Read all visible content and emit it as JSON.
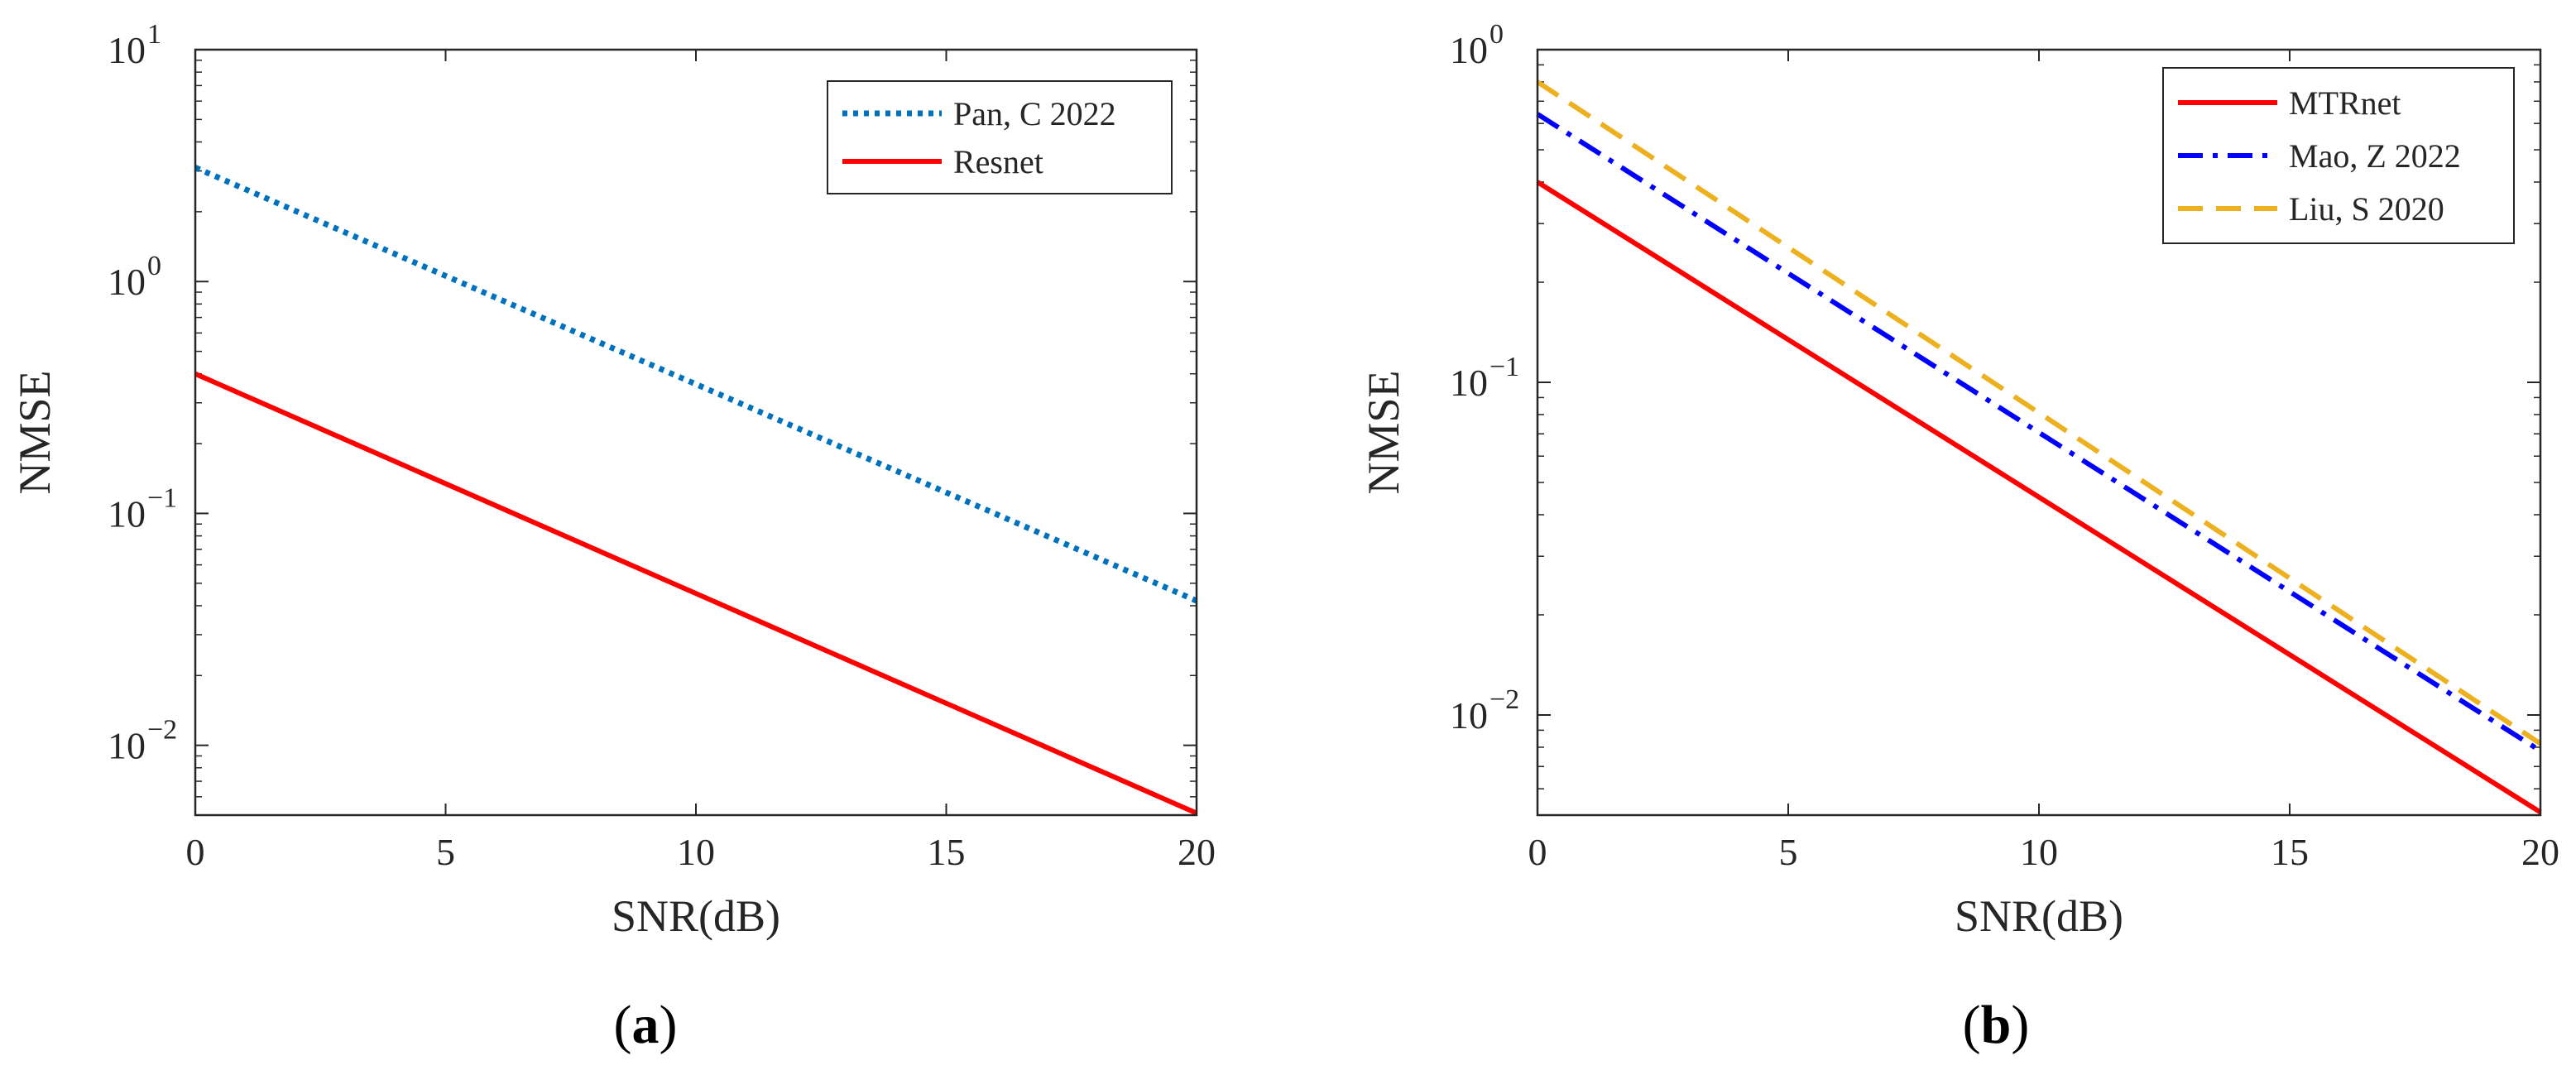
{
  "chart_data": [
    {
      "type": "line",
      "panel_label": "a",
      "xlabel": "SNR(dB)",
      "ylabel": "NMSE",
      "yscale": "log",
      "xlim": [
        0,
        20
      ],
      "ylim": [
        0.005,
        10
      ],
      "x_ticks": [
        0,
        5,
        10,
        15,
        20
      ],
      "y_ticks": [
        0.01,
        0.1,
        1,
        10
      ],
      "y_tick_labels": [
        {
          "base": "10",
          "exp": "−2"
        },
        {
          "base": "10",
          "exp": "−1"
        },
        {
          "base": "10",
          "exp": "0"
        },
        {
          "base": "10",
          "exp": "1"
        }
      ],
      "legend_position": "top-right",
      "series": [
        {
          "name": "Pan, C 2022",
          "color": "#0072BD",
          "style": "dotted",
          "x": [
            0,
            20
          ],
          "y": [
            3.1,
            0.042
          ]
        },
        {
          "name": "Resnet",
          "color": "#FF0000",
          "style": "solid",
          "x": [
            0,
            20
          ],
          "y": [
            0.4,
            0.0051
          ]
        }
      ]
    },
    {
      "type": "line",
      "panel_label": "b",
      "xlabel": "SNR(dB)",
      "ylabel": "NMSE",
      "yscale": "log",
      "xlim": [
        0,
        20
      ],
      "ylim": [
        0.005,
        1
      ],
      "x_ticks": [
        0,
        5,
        10,
        15,
        20
      ],
      "y_ticks": [
        0.01,
        0.1,
        1
      ],
      "y_tick_labels": [
        {
          "base": "10",
          "exp": "−2"
        },
        {
          "base": "10",
          "exp": "−1"
        },
        {
          "base": "10",
          "exp": "0"
        }
      ],
      "legend_position": "top-right",
      "series": [
        {
          "name": "MTRnet",
          "color": "#FF0000",
          "style": "solid",
          "x": [
            0,
            20
          ],
          "y": [
            0.4,
            0.0051
          ]
        },
        {
          "name": "Mao, Z 2022",
          "color": "#0000FF",
          "style": "dashdot",
          "x": [
            0,
            20
          ],
          "y": [
            0.64,
            0.0078
          ]
        },
        {
          "name": "Liu, S 2020",
          "color": "#EDB120",
          "style": "dashed",
          "x": [
            0,
            20
          ],
          "y": [
            0.8,
            0.0082
          ]
        }
      ]
    }
  ]
}
